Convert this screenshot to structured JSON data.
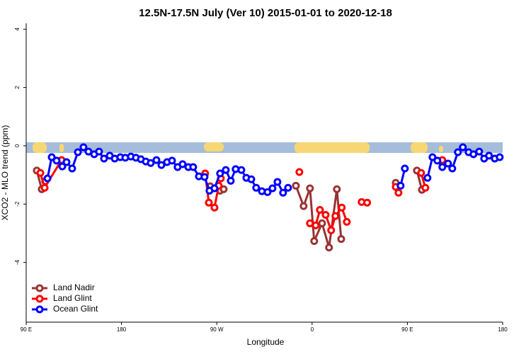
{
  "chart_data": {
    "type": "line",
    "title": "12.5N-17.5N July (Ver 10)   2015-01-01 to 2020-12-18",
    "xlabel": "Longitude",
    "ylabel": "XCO2 - MLO trend (ppm)",
    "xlim": [
      90,
      540
    ],
    "ylim": [
      -6.05,
      4.2
    ],
    "xticks": [
      {
        "value": 90,
        "label": "90 E"
      },
      180,
      {
        "value": 270,
        "label": "90 W"
      },
      {
        "value": 360,
        "label": "0"
      },
      {
        "value": 450,
        "label": "90 E"
      },
      {
        "value": 540,
        "label": "180"
      }
    ],
    "yticks": [
      -4,
      -2,
      0,
      2,
      4
    ],
    "legend": "bottom-left",
    "series": [
      {
        "name": "Land Nadir",
        "color": "#993333",
        "x": [
          100,
          104.7,
          108,
          null,
          263.8,
          273,
          276.5,
          null,
          344.7,
          352,
          358,
          362,
          369.4,
          376,
          383.4,
          387.5,
          null,
          439,
          null,
          459,
          463.7
        ],
        "values": [
          -0.85,
          -1.49,
          -1.22,
          null,
          -1.39,
          -1.54,
          -1.49,
          null,
          -1.37,
          -2.07,
          -1.46,
          -3.27,
          -2.66,
          -3.49,
          -1.49,
          -3.2,
          null,
          -1.27,
          null,
          -0.85,
          -1.51
        ]
      },
      {
        "name": "Land Glint",
        "color": "#ff0000",
        "x": [
          103.4,
          107.4,
          123.4,
          null,
          259,
          262.5,
          267.8,
          271.8,
          273.8,
          null,
          348,
          null,
          358,
          363.4,
          367.4,
          372.8,
          378,
          382,
          388,
          392.8,
          null,
          406.8,
          412,
          null,
          439,
          441.6,
          null,
          463,
          467,
          null,
          483
        ],
        "values": [
          -0.93,
          -1.44,
          -0.49,
          null,
          -0.95,
          -1.95,
          -2.12,
          -1.37,
          -1.12,
          null,
          -0.9,
          null,
          -2.66,
          -2.73,
          -2.2,
          -2.37,
          -2.9,
          -2.41,
          -2.12,
          -2.61,
          null,
          -1.93,
          -1.95,
          null,
          -1.41,
          -1.61,
          null,
          -0.93,
          -1.44,
          null,
          -0.49
        ]
      },
      {
        "name": "Ocean Glint",
        "color": "#0000ff",
        "x": [
          110.1,
          114.1,
          118.7,
          124.1,
          128.1,
          133.4,
          138.8,
          144.1,
          148.8,
          154.2,
          158.8,
          163.5,
          168.9,
          173.6,
          178.9,
          183.6,
          188.9,
          193.6,
          198.3,
          203,
          207.6,
          213,
          217.7,
          223,
          227.7,
          233,
          237.7,
          243.1,
          247.7,
          253.1,
          258.4,
          263.1,
          267.8,
          273.1,
          278.5,
          283.2,
          287.8,
          293.2,
          297.9,
          302.6,
          307.2,
          312.6,
          317.9,
          322.6,
          327.3,
          332.6,
          337.3,
          null,
          443.6,
          447.6,
          null,
          469,
          473.7,
          478.3,
          483,
          488.4,
          492.4,
          497.7,
          502.4,
          507.8,
          512.4,
          517.8,
          522.5,
          527.1,
          532.5,
          537.2
        ],
        "values": [
          -1.12,
          -0.39,
          -0.51,
          -0.71,
          -0.56,
          -0.78,
          -0.22,
          -0.05,
          -0.2,
          -0.29,
          -0.2,
          -0.44,
          -0.34,
          -0.44,
          -0.39,
          -0.41,
          -0.37,
          -0.41,
          -0.46,
          -0.54,
          -0.59,
          -0.49,
          -0.66,
          -0.56,
          -0.51,
          -0.73,
          -0.63,
          -0.73,
          -0.73,
          -1.05,
          -1.07,
          -1.54,
          -1.46,
          -0.95,
          -0.83,
          -1.2,
          -0.8,
          -0.83,
          -1.1,
          -1.15,
          -1.44,
          -1.56,
          -1.59,
          -1.46,
          -1.24,
          -1.61,
          -1.44,
          null,
          -1.37,
          -0.78,
          null,
          -1.1,
          -0.39,
          -0.51,
          -0.73,
          -0.61,
          -0.78,
          -0.22,
          -0.05,
          -0.22,
          -0.29,
          -0.2,
          -0.44,
          -0.34,
          -0.44,
          -0.39
        ]
      }
    ]
  }
}
